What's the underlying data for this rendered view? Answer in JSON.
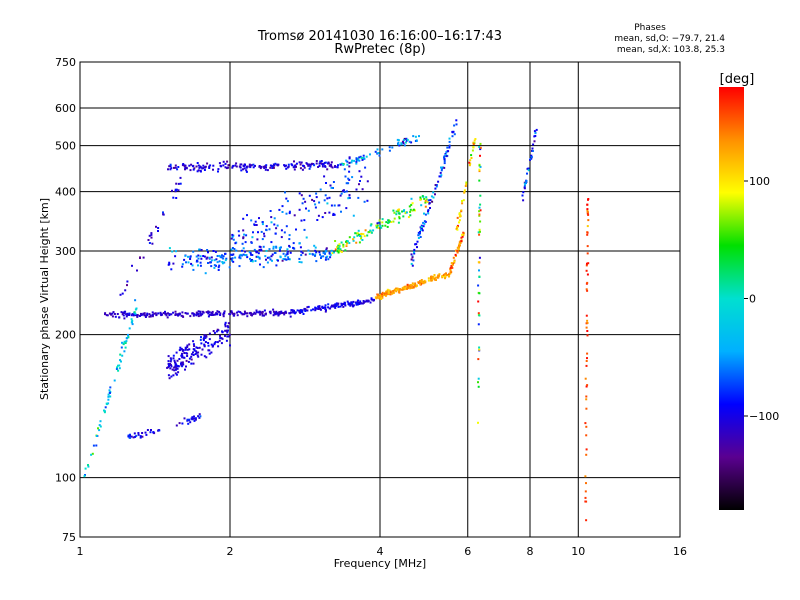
{
  "chart_data": {
    "type": "scatter",
    "title": "Tromsø 20141030 16:16:00–16:17:43",
    "subtitle": "RwPretec (8p)",
    "phases_block": {
      "heading": "Phases",
      "line1": "mean, sd,O: −79.7, 21.4",
      "line2": "mean, sd,X: 103.8, 25.3"
    },
    "xlabel": "Frequency [MHz]",
    "ylabel": "Stationary phase Virtual Height [km]",
    "x_scale": "log",
    "y_scale": "log",
    "xlim": [
      1,
      16
    ],
    "ylim": [
      75,
      750
    ],
    "x_ticks": [
      1,
      2,
      4,
      6,
      8,
      10,
      16
    ],
    "x_tick_labels": [
      "1",
      "2",
      "4",
      "6",
      "8",
      "10",
      "16"
    ],
    "y_ticks": [
      75,
      100,
      200,
      300,
      400,
      500,
      600,
      750
    ],
    "y_tick_labels": [
      "75",
      "100",
      "200",
      "300",
      "400",
      "500",
      "600",
      "750"
    ],
    "grid": true,
    "colorbar": {
      "label": "[deg]",
      "range": [
        -180,
        180
      ],
      "ticks": [
        100,
        0,
        -100
      ],
      "tick_labels": [
        "100",
        "0",
        "−100"
      ],
      "colors": [
        "#000000",
        "#5a0090",
        "#0000ff",
        "#00b0ff",
        "#00e0d0",
        "#00e000",
        "#ffff00",
        "#ff9000",
        "#ff0000"
      ]
    },
    "traces": [
      {
        "name": "",
        "f_from": 1.12,
        "f_to": 2.6,
        "h_from": 220,
        "h_to": 222,
        "phase_mean": -110,
        "phase_sd": 12,
        "count": 220,
        "spread": 4
      },
      {
        "name": "",
        "f_from": 2.6,
        "f_to": 3.9,
        "h_from": 222,
        "h_to": 236,
        "phase_mean": -100,
        "phase_sd": 15,
        "count": 140,
        "spread": 4
      },
      {
        "name": "",
        "f_from": 3.9,
        "f_to": 5.5,
        "h_from": 240,
        "h_to": 268,
        "phase_mean": 130,
        "phase_sd": 20,
        "count": 170,
        "spread": 4
      },
      {
        "name": "",
        "f_from": 5.5,
        "f_to": 5.9,
        "h_from": 268,
        "h_to": 330,
        "phase_mean": 140,
        "phase_sd": 25,
        "count": 50,
        "spread": 4
      },
      {
        "name": "",
        "f_from": 1.5,
        "f_to": 3.2,
        "h_from": 285,
        "h_to": 300,
        "phase_mean": -70,
        "phase_sd": 35,
        "count": 220,
        "spread": 14
      },
      {
        "name": "",
        "f_from": 3.2,
        "f_to": 5.0,
        "h_from": 300,
        "h_to": 385,
        "phase_mean": 40,
        "phase_sd": 70,
        "count": 130,
        "spread": 10
      },
      {
        "name": "",
        "f_from": 1.5,
        "f_to": 3.3,
        "h_from": 450,
        "h_to": 455,
        "phase_mean": -105,
        "phase_sd": 20,
        "count": 190,
        "spread": 6
      },
      {
        "name": "",
        "f_from": 3.3,
        "f_to": 4.8,
        "h_from": 455,
        "h_to": 520,
        "phase_mean": -60,
        "phase_sd": 50,
        "count": 70,
        "spread": 6
      },
      {
        "name": "",
        "f_from": 1.5,
        "f_to": 2.0,
        "h_from": 170,
        "h_to": 205,
        "phase_mean": -105,
        "phase_sd": 15,
        "count": 170,
        "spread": 18
      },
      {
        "name": "",
        "f_from": 1.25,
        "f_to": 1.45,
        "h_from": 122,
        "h_to": 126,
        "phase_mean": -95,
        "phase_sd": 25,
        "count": 30,
        "spread": 4
      },
      {
        "name": "",
        "f_from": 1.55,
        "f_to": 1.75,
        "h_from": 128,
        "h_to": 135,
        "phase_mean": -100,
        "phase_sd": 20,
        "count": 25,
        "spread": 4
      },
      {
        "name": "",
        "f_from": 1.02,
        "f_to": 1.3,
        "h_from": 100,
        "h_to": 230,
        "phase_mean": -20,
        "phase_sd": 50,
        "count": 70,
        "spread": 10
      },
      {
        "name": "",
        "f_from": 2.0,
        "f_to": 3.8,
        "h_from": 310,
        "h_to": 420,
        "phase_mean": -85,
        "phase_sd": 30,
        "count": 150,
        "spread": 30
      },
      {
        "name": "",
        "f_from": 4.6,
        "f_to": 5.7,
        "h_from": 280,
        "h_to": 560,
        "phase_mean": -80,
        "phase_sd": 40,
        "count": 90,
        "spread": 10
      },
      {
        "name": "",
        "f_from": 5.7,
        "f_to": 6.2,
        "h_from": 330,
        "h_to": 520,
        "phase_mean": 110,
        "phase_sd": 40,
        "count": 40,
        "spread": 6
      },
      {
        "name": "",
        "f_from": 6.3,
        "f_to": 6.35,
        "h_from": 130,
        "h_to": 520,
        "phase_mean": 60,
        "phase_sd": 90,
        "count": 45,
        "spread": 2
      },
      {
        "name": "",
        "f_from": 7.7,
        "f_to": 8.3,
        "h_from": 380,
        "h_to": 560,
        "phase_mean": -90,
        "phase_sd": 40,
        "count": 35,
        "spread": 4
      },
      {
        "name": "",
        "f_from": 10.35,
        "f_to": 10.45,
        "h_from": 80,
        "h_to": 400,
        "phase_mean": 160,
        "phase_sd": 25,
        "count": 55,
        "spread": 1
      },
      {
        "name": "",
        "f_from": 1.2,
        "f_to": 1.6,
        "h_from": 240,
        "h_to": 420,
        "phase_mean": -110,
        "phase_sd": 20,
        "count": 35,
        "spread": 10
      }
    ]
  }
}
